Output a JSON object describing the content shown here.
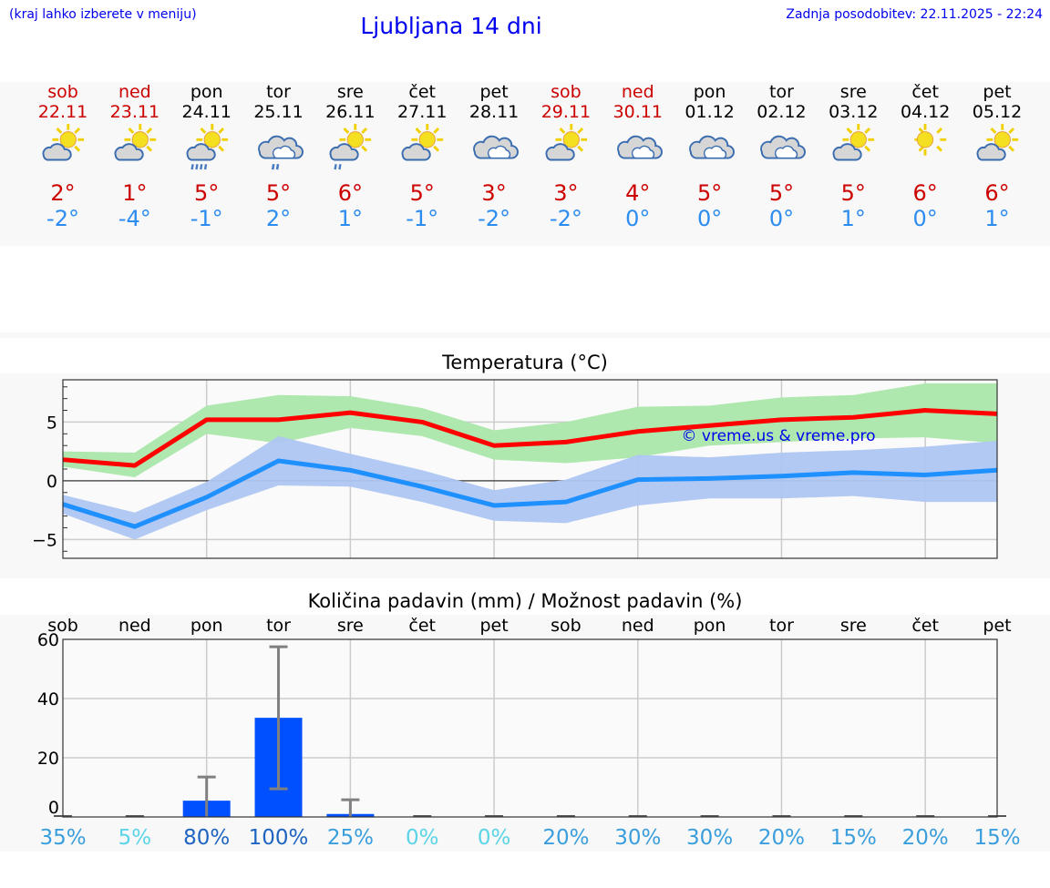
{
  "header": {
    "hint": "(kraj lahko izberete v meniju)",
    "title": "Ljubljana 14 dni",
    "updated": "Zadnja posodobitev: 22.11.2025 - 22:24"
  },
  "days": [
    {
      "name": "sob",
      "date": "22.11",
      "weekend": true,
      "icon": "sun-cloud",
      "max": "2°",
      "min": "-2°"
    },
    {
      "name": "ned",
      "date": "23.11",
      "weekend": true,
      "icon": "sun-cloud",
      "max": "1°",
      "min": "-4°"
    },
    {
      "name": "pon",
      "date": "24.11",
      "weekend": false,
      "icon": "sun-cloud-rain",
      "max": "5°",
      "min": "-1°"
    },
    {
      "name": "tor",
      "date": "25.11",
      "weekend": false,
      "icon": "cloud-rain",
      "max": "5°",
      "min": "2°"
    },
    {
      "name": "sre",
      "date": "26.11",
      "weekend": false,
      "icon": "sun-cloud-light-rain",
      "max": "6°",
      "min": "1°"
    },
    {
      "name": "čet",
      "date": "27.11",
      "weekend": false,
      "icon": "sun-cloud",
      "max": "5°",
      "min": "-1°"
    },
    {
      "name": "pet",
      "date": "28.11",
      "weekend": false,
      "icon": "cloudy",
      "max": "3°",
      "min": "-2°"
    },
    {
      "name": "sob",
      "date": "29.11",
      "weekend": true,
      "icon": "sun-cloud",
      "max": "3°",
      "min": "-2°"
    },
    {
      "name": "ned",
      "date": "30.11",
      "weekend": true,
      "icon": "cloudy",
      "max": "4°",
      "min": "0°"
    },
    {
      "name": "pon",
      "date": "01.12",
      "weekend": false,
      "icon": "cloudy",
      "max": "5°",
      "min": "0°"
    },
    {
      "name": "tor",
      "date": "02.12",
      "weekend": false,
      "icon": "cloudy",
      "max": "5°",
      "min": "0°"
    },
    {
      "name": "sre",
      "date": "03.12",
      "weekend": false,
      "icon": "sun-cloud",
      "max": "5°",
      "min": "1°"
    },
    {
      "name": "čet",
      "date": "04.12",
      "weekend": false,
      "icon": "sun",
      "max": "6°",
      "min": "0°"
    },
    {
      "name": "pet",
      "date": "05.12",
      "weekend": false,
      "icon": "sun-cloud",
      "max": "6°",
      "min": "1°"
    }
  ],
  "colors": {
    "weekend": "#cc0000",
    "weekday": "#000000",
    "max": "#cc0000",
    "min": "#2c8cf0",
    "max_line": "#ff0000",
    "max_band": "#aee8ae",
    "min_line": "#1e90ff",
    "min_band": "#aec6f2",
    "bar": "#0050ff"
  },
  "chart_data": [
    {
      "type": "line",
      "title": "Temperatura (°C)",
      "ylim": [
        -6.6,
        8.6
      ],
      "yticks": [
        -5,
        0,
        5
      ],
      "ytick_labels": [
        "−5",
        "0",
        "5"
      ],
      "grid": true,
      "watermark": "© vreme.us & vreme.pro",
      "series": [
        {
          "values": [
            1.8,
            1.3,
            5.2,
            5.2,
            5.8,
            5.0,
            3.0,
            3.3,
            4.2,
            4.7,
            5.2,
            5.4,
            6.0,
            5.7
          ],
          "band_upper": [
            2.5,
            2.4,
            6.4,
            7.3,
            7.2,
            6.2,
            4.3,
            5.0,
            6.3,
            6.4,
            7.1,
            7.3,
            8.3,
            8.3
          ],
          "band_lower": [
            1.2,
            0.3,
            4.0,
            3.2,
            4.5,
            3.8,
            1.8,
            1.5,
            2.0,
            3.0,
            3.3,
            3.6,
            3.7,
            3.2
          ]
        },
        {
          "values": [
            -2.0,
            -3.9,
            -1.4,
            1.7,
            0.9,
            -0.5,
            -2.1,
            -1.8,
            0.1,
            0.2,
            0.4,
            0.7,
            0.5,
            0.9
          ],
          "band_upper": [
            -1.2,
            -2.7,
            -0.1,
            3.8,
            2.3,
            0.9,
            -0.8,
            0.1,
            2.2,
            2.0,
            2.4,
            2.6,
            2.9,
            3.4
          ],
          "band_lower": [
            -2.8,
            -5.0,
            -2.5,
            -0.4,
            -0.5,
            -1.8,
            -3.4,
            -3.6,
            -2.1,
            -1.5,
            -1.5,
            -1.3,
            -1.8,
            -1.8
          ]
        }
      ]
    },
    {
      "type": "bar",
      "title": "Količina padavin (mm) / Možnost padavin (%)",
      "ylim": [
        0,
        60
      ],
      "yticks": [
        0,
        20,
        40,
        60
      ],
      "categories": [
        "sob",
        "ned",
        "pon",
        "tor",
        "sre",
        "čet",
        "pet",
        "sob",
        "ned",
        "pon",
        "tor",
        "sre",
        "čet",
        "pet"
      ],
      "values": [
        0,
        0,
        5.5,
        33.5,
        1,
        0,
        0,
        0,
        0,
        0,
        0,
        0,
        0,
        0
      ],
      "err_low": [
        0,
        0,
        0,
        9.5,
        0,
        0,
        0,
        0,
        0,
        0,
        0,
        0,
        0,
        0
      ],
      "err_high": [
        0,
        0,
        13.5,
        57.5,
        5.8,
        0,
        0,
        0,
        0,
        0,
        0,
        0,
        0,
        0
      ],
      "probability": [
        "35%",
        "5%",
        "80%",
        "100%",
        "25%",
        "0%",
        "0%",
        "20%",
        "30%",
        "30%",
        "20%",
        "15%",
        "20%",
        "15%"
      ],
      "probability_colors": [
        "#3a9ddc",
        "#5ad4e6",
        "#1e64c0",
        "#1e64c0",
        "#3a9ddc",
        "#5ad4e6",
        "#5ad4e6",
        "#3a9ddc",
        "#3a9ddc",
        "#3a9ddc",
        "#3a9ddc",
        "#3a9ddc",
        "#3a9ddc",
        "#3a9ddc"
      ]
    }
  ]
}
